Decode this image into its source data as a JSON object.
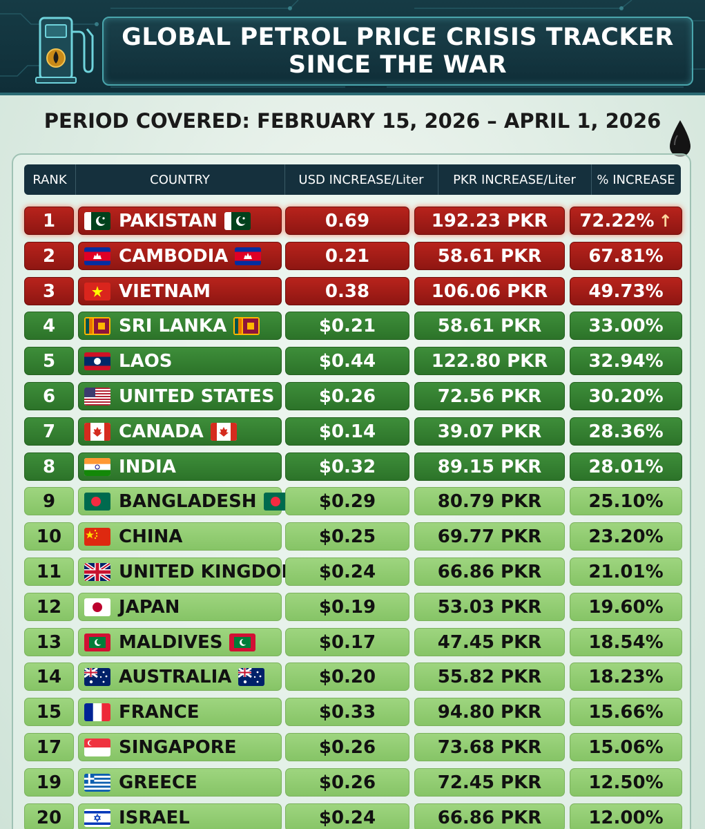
{
  "header": {
    "title_line1": "GLOBAL PETROL PRICE CRISIS TRACKER",
    "title_line2": "SINCE THE WAR",
    "period": "PERIOD COVERED: FEBRUARY 15, 2026 – APRIL 1, 2026",
    "icons": [
      "fuel-pump-icon",
      "oil-drop-icon"
    ]
  },
  "colors": {
    "top_tier": "#b8231c",
    "mid_tier": "#3e8e3a",
    "low_tier": "#9ed57f",
    "header_bg": "#15303d"
  },
  "chart_data": {
    "type": "table",
    "columns": [
      "RANK",
      "COUNTRY",
      "USD INCREASE/Liter",
      "PKR INCREASE/Liter",
      "% INCREASE"
    ],
    "rows": [
      {
        "rank": "1",
        "country": "PAKISTAN",
        "flag": "pk",
        "flag_end": true,
        "usd": "0.69",
        "pkr": "192.23 PKR",
        "pct": "72.22%",
        "tier": "red",
        "arrow": true
      },
      {
        "rank": "2",
        "country": "CAMBODIA",
        "flag": "kh",
        "flag_end": true,
        "usd": "0.21",
        "pkr": "58.61 PKR",
        "pct": "67.81%",
        "tier": "red"
      },
      {
        "rank": "3",
        "country": "VIETNAM",
        "flag": "vn",
        "flag_end": false,
        "usd": "0.38",
        "pkr": "106.06 PKR",
        "pct": "49.73%",
        "tier": "red"
      },
      {
        "rank": "4",
        "country": "SRI LANKA",
        "flag": "lk",
        "flag_end": true,
        "usd": "$0.21",
        "pkr": "58.61 PKR",
        "pct": "33.00%",
        "tier": "dg"
      },
      {
        "rank": "5",
        "country": "LAOS",
        "flag": "la",
        "flag_end": false,
        "usd": "$0.44",
        "pkr": "122.80 PKR",
        "pct": "32.94%",
        "tier": "dg"
      },
      {
        "rank": "6",
        "country": "UNITED STATES",
        "flag": "us",
        "flag_end": false,
        "usd": "$0.26",
        "pkr": "72.56 PKR",
        "pct": "30.20%",
        "tier": "dg"
      },
      {
        "rank": "7",
        "country": "CANADA",
        "flag": "ca",
        "flag_end": true,
        "usd": "$0.14",
        "pkr": "39.07 PKR",
        "pct": "28.36%",
        "tier": "dg"
      },
      {
        "rank": "8",
        "country": "INDIA",
        "flag": "in",
        "flag_end": false,
        "usd": "$0.32",
        "pkr": "89.15 PKR",
        "pct": "28.01%",
        "tier": "dg"
      },
      {
        "rank": "9",
        "country": "BANGLADESH",
        "flag": "bd",
        "flag_end": true,
        "usd": "$0.29",
        "pkr": "80.79 PKR",
        "pct": "25.10%",
        "tier": "lg"
      },
      {
        "rank": "10",
        "country": "CHINA",
        "flag": "cn",
        "flag_end": false,
        "usd": "$0.25",
        "pkr": "69.77 PKR",
        "pct": "23.20%",
        "tier": "lg"
      },
      {
        "rank": "11",
        "country": "UNITED KINGDOM",
        "flag": "gb",
        "flag_end": false,
        "usd": "$0.24",
        "pkr": "66.86 PKR",
        "pct": "21.01%",
        "tier": "lg"
      },
      {
        "rank": "12",
        "country": "JAPAN",
        "flag": "jp",
        "flag_end": false,
        "usd": "$0.19",
        "pkr": "53.03 PKR",
        "pct": "19.60%",
        "tier": "lg"
      },
      {
        "rank": "13",
        "country": "MALDIVES",
        "flag": "mv",
        "flag_end": true,
        "usd": "$0.17",
        "pkr": "47.45 PKR",
        "pct": "18.54%",
        "tier": "lg"
      },
      {
        "rank": "14",
        "country": "AUSTRALIA",
        "flag": "au",
        "flag_end": true,
        "usd": "$0.20",
        "pkr": "55.82 PKR",
        "pct": "18.23%",
        "tier": "lg"
      },
      {
        "rank": "15",
        "country": "FRANCE",
        "flag": "fr",
        "flag_end": false,
        "usd": "$0.33",
        "pkr": "94.80 PKR",
        "pct": "15.66%",
        "tier": "lg"
      },
      {
        "rank": "17",
        "country": "SINGAPORE",
        "flag": "sg",
        "flag_end": false,
        "usd": "$0.26",
        "pkr": "73.68 PKR",
        "pct": "15.06%",
        "tier": "lg"
      },
      {
        "rank": "19",
        "country": "GREECE",
        "flag": "gr",
        "flag_end": false,
        "usd": "$0.26",
        "pkr": "72.45 PKR",
        "pct": "12.50%",
        "tier": "lg"
      },
      {
        "rank": "20",
        "country": "ISRAEL",
        "flag": "il",
        "flag_end": false,
        "usd": "$0.24",
        "pkr": "66.86 PKR",
        "pct": "12.00%",
        "tier": "lg"
      }
    ]
  }
}
